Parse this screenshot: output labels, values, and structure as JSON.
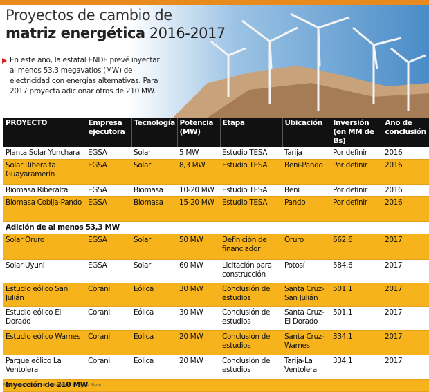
{
  "header": {
    "title_line1": "Proyectos de cambio de",
    "title_bold": "matriz energética",
    "title_years": "2016-2017",
    "intro": "En este año, la estatal ENDE prevé inyectar al menos 53,3 megavatios (MW) de electricidad con energías alternativas. Para 2017 proyecta adicionar otros de 210 MW."
  },
  "table": {
    "columns": [
      "PROYECTO",
      "Empresa ejecutora",
      "Tecnología",
      "Potencia (MW)",
      "Etapa",
      "Ubicación",
      "Inversión (en MM de Bs)",
      "Año de conclusión"
    ],
    "rows": [
      {
        "cells": [
          "Planta Solar Yunchara",
          "EGSA",
          "Solar",
          "5 MW",
          "Estudio TESA",
          "Tarija",
          "Por definir",
          "2016"
        ]
      },
      {
        "cells": [
          "Solar Riberalta Guayaramerín",
          "EGSA",
          "Solar",
          "8,3 MW",
          "Estudio TESA",
          "Beni-Pando",
          "Por definir",
          "2016"
        ]
      },
      {
        "cells": [
          "Biomasa Riberalta",
          "EGSA",
          "Biomasa",
          "10-20 MW",
          "Estudio TESA",
          "Beni",
          "Por definir",
          "2016"
        ]
      },
      {
        "cells": [
          "Biomasa Cobija-Pando",
          "EGSA",
          "Biomasa",
          "15-20 MW",
          "Estudio TESA",
          "Pando",
          "Por definir",
          "2016"
        ]
      },
      {
        "section": "Adición de al menos 53,3 MW"
      },
      {
        "cells": [
          "Solar Oruro",
          "EGSA",
          "Solar",
          "50 MW",
          "Definición de financiador",
          "Oruro",
          "662,6",
          "2017"
        ]
      },
      {
        "cells": [
          "Solar Uyuni",
          "EGSA",
          "Solar",
          "60 MW",
          "Licitación para construcción",
          "Potosí",
          "584,6",
          "2017"
        ]
      },
      {
        "cells": [
          "Estudio eólico San Julián",
          "Corani",
          "Eólica",
          "30 MW",
          "Conclusión de estudios",
          "Santa Cruz-San Julián",
          "501,1",
          "2017"
        ]
      },
      {
        "cells": [
          "Estudio eólico El Dorado",
          "Corani",
          "Eólica",
          "30 MW",
          "Conclusión de estudios",
          "Santa Cruz-El Dorado",
          "501,1",
          "2017"
        ]
      },
      {
        "cells": [
          "Estudio eólico Warnes",
          "Corani",
          "Eólica",
          "20 MW",
          "Conclusión de estudios",
          "Santa Cruz-Warnes",
          "334,1",
          "2017"
        ]
      },
      {
        "cells": [
          "Parque eólico La Ventolera",
          "Corani",
          "Eólica",
          "20 MW",
          "Conclusión de estudios",
          "Tarija-La Ventolera",
          "334,1",
          "2017"
        ]
      },
      {
        "section": "Inyección de 210 MW"
      }
    ]
  },
  "footer": "Fuente: ENDE / Gráfico: Rubén A. / Página Siete"
}
